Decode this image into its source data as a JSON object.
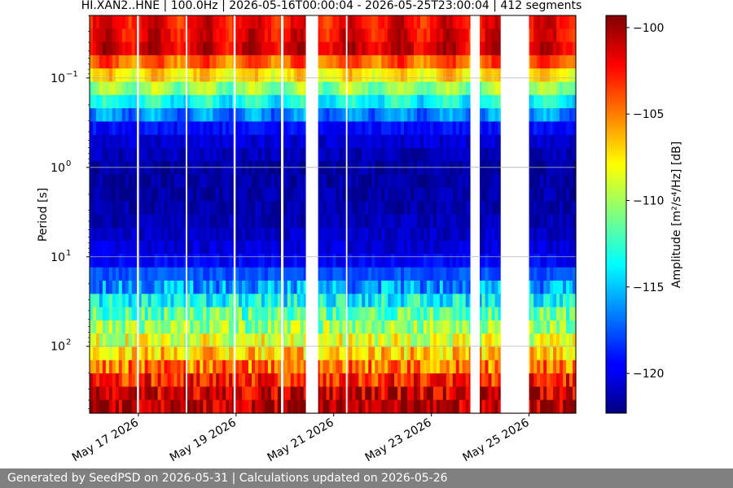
{
  "chart_data": {
    "type": "heatmap",
    "title": "HI.XAN2..HNE | 100.0Hz | 2026-05-16T00:00:04 - 2026-05-25T23:00:04 | 412 segments",
    "xlabel": "",
    "ylabel": "Period [s]",
    "y_scale": "log",
    "y_axis_inverted": true,
    "y_range_seconds": [
      0.02,
      560
    ],
    "y_ticks": [
      {
        "value": 0.1,
        "base": "10",
        "exp": "−1"
      },
      {
        "value": 1,
        "base": "10",
        "exp": "0"
      },
      {
        "value": 10,
        "base": "10",
        "exp": "1"
      },
      {
        "value": 100,
        "base": "10",
        "exp": "2"
      }
    ],
    "x_range_days": [
      "2026-05-16T00:00:04",
      "2026-05-25T23:00:04"
    ],
    "x_ticks": [
      {
        "day": 1,
        "label": "May 17 2026"
      },
      {
        "day": 3,
        "label": "May 19 2026"
      },
      {
        "day": 5,
        "label": "May 21 2026"
      },
      {
        "day": 7,
        "label": "May 23 2026"
      },
      {
        "day": 9,
        "label": "May 25 2026"
      }
    ],
    "grid": "horizontal at y decades",
    "gaps_days": [
      [
        0.97,
        1.01
      ],
      [
        1.97,
        2.0
      ],
      [
        2.95,
        2.99
      ],
      [
        3.92,
        3.97
      ],
      [
        4.43,
        4.68
      ],
      [
        5.25,
        5.28
      ],
      [
        7.8,
        7.99
      ],
      [
        8.42,
        9.0
      ]
    ],
    "colorbar": {
      "label": "Amplitude [m²/s⁴/Hz] [dB]",
      "colormap": "jet",
      "range_db": [
        -122.3,
        -99.3
      ],
      "ticks": [
        -100,
        -105,
        -110,
        -115,
        -120
      ]
    },
    "spectral_profile": {
      "x_log10_period": [
        -1.5,
        -1.35,
        -1.0,
        -0.7,
        -0.4,
        0.0,
        0.6,
        1.0,
        1.3,
        1.6,
        2.0,
        2.3,
        2.5,
        2.75
      ],
      "y_level_0_to_1": [
        0.88,
        0.93,
        0.62,
        0.35,
        0.1,
        0.03,
        0.05,
        0.1,
        0.26,
        0.45,
        0.62,
        0.8,
        0.92,
        0.97
      ]
    },
    "description_colors": [
      "#00007f",
      "#0000ff",
      "#00ffff",
      "#ffff00",
      "#ff0000",
      "#7f0000"
    ]
  },
  "footer": {
    "text": "Generated by SeedPSD on 2026-05-31 | Calculations updated on 2026-05-26",
    "background": "#808080"
  }
}
